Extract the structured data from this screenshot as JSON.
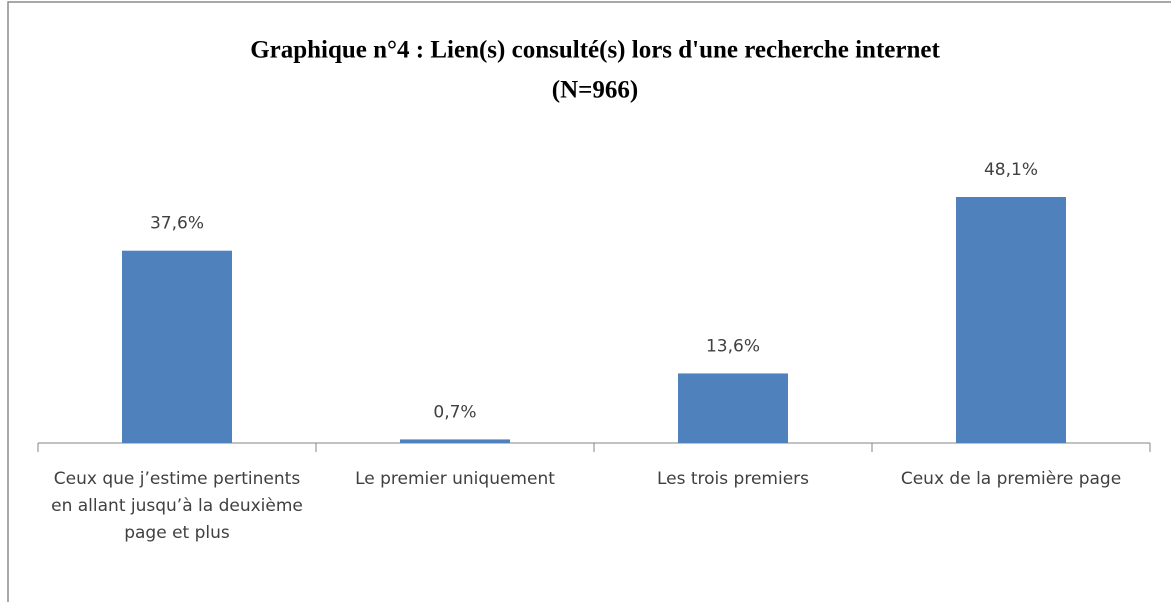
{
  "chart_data": {
    "type": "bar",
    "title": "Graphique n°4 : Lien(s) consulté(s) lors d'une recherche internet",
    "subtitle": "(N=966)",
    "categories": [
      "Ceux que j’estime pertinents en allant jusqu’à la deuxième page et plus",
      "Le premier uniquement",
      "Les trois premiers",
      "Ceux de la première page"
    ],
    "values": [
      37.6,
      0.7,
      13.6,
      48.1
    ],
    "value_labels": [
      "37,6%",
      "0,7%",
      "13,6%",
      "48,1%"
    ],
    "color": "#4f81bd"
  }
}
